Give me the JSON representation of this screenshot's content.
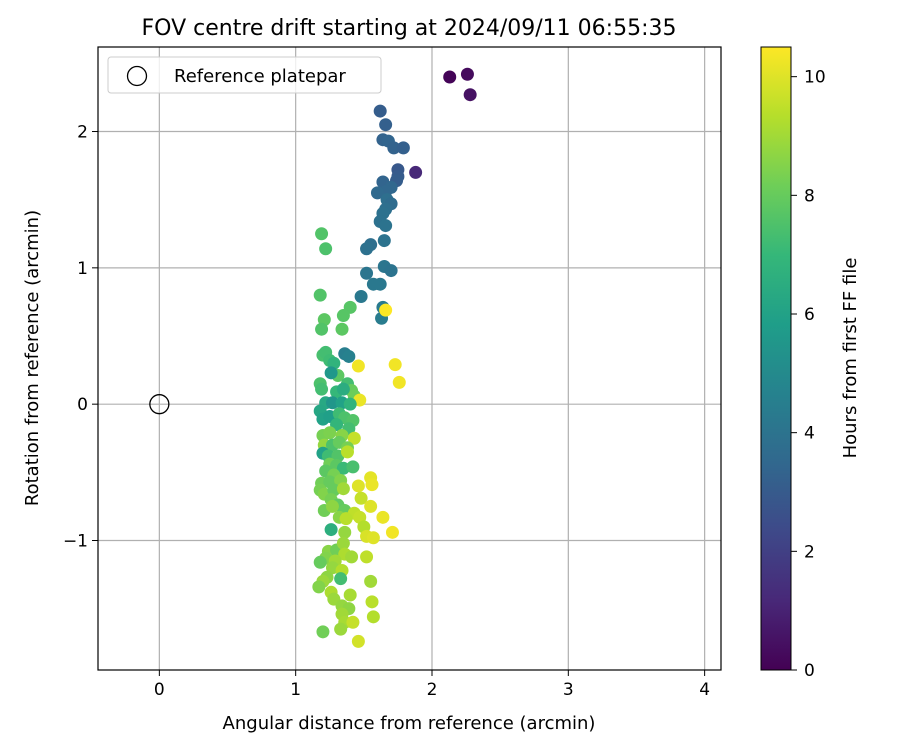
{
  "chart_data": {
    "type": "scatter",
    "title": "FOV centre drift starting at 2024/09/11 06:55:35",
    "xlabel": "Angular distance from reference (arcmin)",
    "ylabel": "Rotation from reference (arcmin)",
    "xlim": [
      -0.45,
      4.12
    ],
    "ylim": [
      -1.95,
      2.62
    ],
    "xticks": [
      0,
      1,
      2,
      3,
      4
    ],
    "yticks": [
      -1,
      0,
      1,
      2
    ],
    "xtick_labels": [
      "0",
      "1",
      "2",
      "3",
      "4"
    ],
    "ytick_labels": [
      "−1",
      "0",
      "1",
      "2"
    ],
    "grid": true,
    "legend": {
      "position": "top-left",
      "entries": [
        "Reference platepar"
      ]
    },
    "reference_point": {
      "x": 0,
      "y": 0
    },
    "colorbar": {
      "label": "Hours from first FF file",
      "range": [
        0,
        10.5
      ],
      "ticks": [
        0,
        2,
        4,
        6,
        8,
        10
      ],
      "tick_labels": [
        "0",
        "2",
        "4",
        "6",
        "8",
        "10"
      ],
      "colormap": "viridis"
    },
    "colors": {
      "viridis_stops": [
        "#440154",
        "#482878",
        "#3e4989",
        "#31688e",
        "#26828e",
        "#1f9e89",
        "#35b779",
        "#6ece58",
        "#b5de2b",
        "#fde725"
      ],
      "grid": "#b0b0b0"
    },
    "points": [
      [
        2.13,
        2.4,
        0.1
      ],
      [
        2.26,
        2.42,
        0.3
      ],
      [
        2.28,
        2.27,
        0.5
      ],
      [
        1.88,
        1.7,
        1.2
      ],
      [
        1.62,
        2.15,
        3.1
      ],
      [
        1.66,
        2.05,
        3.2
      ],
      [
        1.64,
        1.94,
        3.3
      ],
      [
        1.68,
        1.93,
        3.4
      ],
      [
        1.72,
        1.88,
        3.3
      ],
      [
        1.79,
        1.88,
        3.2
      ],
      [
        1.75,
        1.72,
        2.9
      ],
      [
        1.75,
        1.67,
        3.0
      ],
      [
        1.74,
        1.64,
        3.1
      ],
      [
        1.64,
        1.63,
        3.4
      ],
      [
        1.7,
        1.59,
        3.5
      ],
      [
        1.66,
        1.56,
        3.5
      ],
      [
        1.6,
        1.55,
        3.6
      ],
      [
        1.67,
        1.5,
        3.8
      ],
      [
        1.7,
        1.47,
        3.7
      ],
      [
        1.66,
        1.43,
        3.8
      ],
      [
        1.64,
        1.4,
        3.9
      ],
      [
        1.62,
        1.34,
        3.9
      ],
      [
        1.66,
        1.31,
        4.0
      ],
      [
        1.55,
        1.17,
        3.8
      ],
      [
        1.52,
        1.14,
        3.9
      ],
      [
        1.65,
        1.2,
        4.0
      ],
      [
        1.65,
        1.01,
        4.1
      ],
      [
        1.7,
        0.98,
        4.0
      ],
      [
        1.52,
        0.96,
        4.1
      ],
      [
        1.57,
        0.88,
        4.2
      ],
      [
        1.62,
        0.88,
        4.2
      ],
      [
        1.48,
        0.79,
        4.2
      ],
      [
        1.64,
        0.71,
        4.3
      ],
      [
        1.63,
        0.63,
        4.4
      ],
      [
        1.66,
        0.69,
        10.5
      ],
      [
        1.19,
        1.25,
        7.6
      ],
      [
        1.22,
        1.14,
        7.5
      ],
      [
        1.18,
        0.8,
        7.6
      ],
      [
        1.4,
        0.71,
        7.7
      ],
      [
        1.21,
        0.62,
        7.8
      ],
      [
        1.35,
        0.65,
        7.7
      ],
      [
        1.19,
        0.55,
        7.6
      ],
      [
        1.34,
        0.55,
        7.8
      ],
      [
        1.36,
        0.37,
        4.5
      ],
      [
        1.39,
        0.35,
        4.6
      ],
      [
        1.2,
        0.36,
        7.4
      ],
      [
        1.22,
        0.38,
        7.3
      ],
      [
        1.25,
        0.32,
        7.2
      ],
      [
        1.28,
        0.3,
        6.8
      ],
      [
        1.31,
        0.21,
        7.8
      ],
      [
        1.26,
        0.23,
        5.6
      ],
      [
        1.38,
        0.15,
        7.3
      ],
      [
        1.41,
        0.1,
        8.0
      ],
      [
        1.43,
        0.06,
        8.1
      ],
      [
        1.46,
        0.28,
        10.3
      ],
      [
        1.73,
        0.29,
        10.3
      ],
      [
        1.76,
        0.16,
        10.3
      ],
      [
        1.47,
        0.03,
        10.2
      ],
      [
        1.18,
        0.15,
        7.5
      ],
      [
        1.19,
        0.11,
        7.3
      ],
      [
        1.3,
        0.09,
        7.0
      ],
      [
        1.35,
        0.11,
        6.5
      ],
      [
        1.22,
        0.01,
        6.3
      ],
      [
        1.27,
        0.01,
        5.5
      ],
      [
        1.34,
        0.01,
        6.0
      ],
      [
        1.4,
        0.0,
        6.8
      ],
      [
        1.18,
        -0.05,
        6.2
      ],
      [
        1.2,
        -0.11,
        6.0
      ],
      [
        1.25,
        -0.09,
        5.9
      ],
      [
        1.32,
        -0.07,
        7.2
      ],
      [
        1.36,
        -0.1,
        7.5
      ],
      [
        1.42,
        -0.12,
        7.6
      ],
      [
        1.3,
        -0.15,
        6.9
      ],
      [
        1.39,
        -0.18,
        7.3
      ],
      [
        1.2,
        -0.23,
        8.3
      ],
      [
        1.25,
        -0.21,
        8.4
      ],
      [
        1.34,
        -0.23,
        8.6
      ],
      [
        1.43,
        -0.25,
        9.6
      ],
      [
        1.21,
        -0.3,
        8.8
      ],
      [
        1.27,
        -0.3,
        7.5
      ],
      [
        1.32,
        -0.28,
        8.0
      ],
      [
        1.38,
        -0.32,
        8.3
      ],
      [
        1.2,
        -0.36,
        6.0
      ],
      [
        1.24,
        -0.38,
        7.2
      ],
      [
        1.31,
        -0.38,
        7.6
      ],
      [
        1.38,
        -0.35,
        9.4
      ],
      [
        1.25,
        -0.44,
        8.2
      ],
      [
        1.3,
        -0.45,
        7.8
      ],
      [
        1.35,
        -0.47,
        7.1
      ],
      [
        1.42,
        -0.46,
        7.4
      ],
      [
        1.22,
        -0.49,
        7.8
      ],
      [
        1.28,
        -0.52,
        8.3
      ],
      [
        1.19,
        -0.58,
        8.2
      ],
      [
        1.25,
        -0.57,
        8.0
      ],
      [
        1.33,
        -0.56,
        8.5
      ],
      [
        1.46,
        -0.6,
        10.0
      ],
      [
        1.55,
        -0.54,
        10.1
      ],
      [
        1.56,
        -0.59,
        10.2
      ],
      [
        1.18,
        -0.63,
        8.3
      ],
      [
        1.21,
        -0.66,
        8.5
      ],
      [
        1.28,
        -0.63,
        8.0
      ],
      [
        1.35,
        -0.62,
        9.0
      ],
      [
        1.26,
        -0.7,
        8.3
      ],
      [
        1.31,
        -0.74,
        7.9
      ],
      [
        1.48,
        -0.69,
        9.6
      ],
      [
        1.55,
        -0.75,
        10.0
      ],
      [
        1.21,
        -0.78,
        8.2
      ],
      [
        1.27,
        -0.75,
        8.7
      ],
      [
        1.36,
        -0.78,
        8.0
      ],
      [
        1.43,
        -0.8,
        9.5
      ],
      [
        1.32,
        -0.83,
        8.6
      ],
      [
        1.37,
        -0.84,
        9.4
      ],
      [
        1.47,
        -0.83,
        9.6
      ],
      [
        1.64,
        -0.83,
        10.2
      ],
      [
        1.26,
        -0.92,
        6.6
      ],
      [
        1.36,
        -0.94,
        8.8
      ],
      [
        1.5,
        -0.9,
        9.3
      ],
      [
        1.52,
        -0.97,
        9.9
      ],
      [
        1.57,
        -0.98,
        10.0
      ],
      [
        1.71,
        -0.94,
        10.3
      ],
      [
        1.24,
        -1.08,
        8.6
      ],
      [
        1.3,
        -1.07,
        8.2
      ],
      [
        1.35,
        -1.02,
        8.9
      ],
      [
        1.36,
        -1.1,
        9.2
      ],
      [
        1.22,
        -1.13,
        8.5
      ],
      [
        1.29,
        -1.15,
        9.0
      ],
      [
        1.41,
        -1.12,
        9.0
      ],
      [
        1.52,
        -1.12,
        9.5
      ],
      [
        1.18,
        -1.16,
        8.0
      ],
      [
        1.27,
        -1.2,
        8.8
      ],
      [
        1.34,
        -1.22,
        9.3
      ],
      [
        1.23,
        -1.27,
        8.7
      ],
      [
        1.2,
        -1.3,
        8.9
      ],
      [
        1.33,
        -1.28,
        7.3
      ],
      [
        1.55,
        -1.3,
        9.0
      ],
      [
        1.17,
        -1.34,
        8.5
      ],
      [
        1.26,
        -1.38,
        9.2
      ],
      [
        1.28,
        -1.43,
        8.9
      ],
      [
        1.4,
        -1.4,
        9.1
      ],
      [
        1.34,
        -1.48,
        8.8
      ],
      [
        1.56,
        -1.45,
        9.4
      ],
      [
        1.39,
        -1.5,
        8.7
      ],
      [
        1.34,
        -1.54,
        9.0
      ],
      [
        1.57,
        -1.56,
        9.3
      ],
      [
        1.36,
        -1.6,
        9.1
      ],
      [
        1.42,
        -1.6,
        9.6
      ],
      [
        1.33,
        -1.65,
        8.9
      ],
      [
        1.2,
        -1.67,
        8.2
      ],
      [
        1.46,
        -1.74,
        9.8
      ]
    ]
  }
}
